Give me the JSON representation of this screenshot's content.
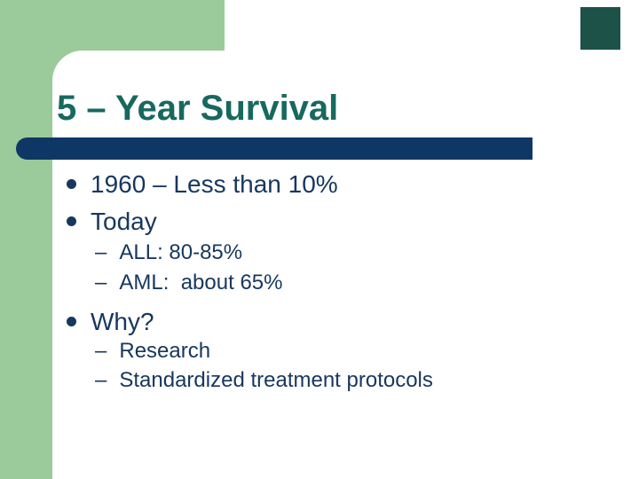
{
  "slide": {
    "title": "5 – Year Survival",
    "dash_glyph": "–",
    "bullets": [
      {
        "level": 1,
        "text": "1960 – Less than 10%"
      },
      {
        "level": 1,
        "text": "Today"
      },
      {
        "level": 2,
        "text": "ALL: 80-85%"
      },
      {
        "level": 2,
        "text": "AML:  about 65%"
      },
      {
        "level": 1,
        "text": "Why?"
      },
      {
        "level": 2,
        "text": "Research"
      },
      {
        "level": 2,
        "text": "Standardized treatment protocols"
      }
    ],
    "colors": {
      "background_accent_green": "#9BCB9B",
      "panel_white": "#FFFFFF",
      "title_teal": "#17695E",
      "body_navy": "#17375E",
      "bar_navy": "#0F3765",
      "corner_square_teal": "#1D5249"
    }
  }
}
